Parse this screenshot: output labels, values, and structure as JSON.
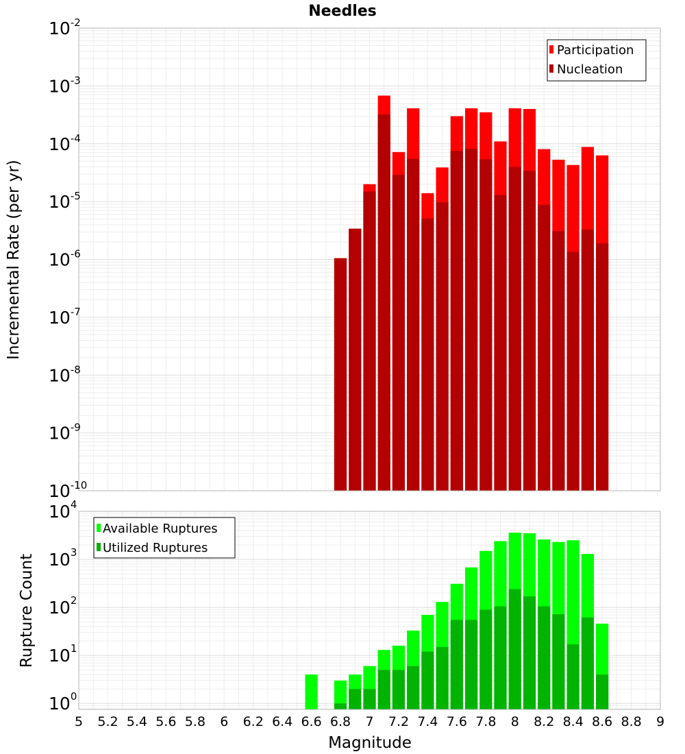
{
  "chart_data": [
    {
      "type": "bar",
      "title": "Needles",
      "xlabel": "",
      "ylabel": "Incremental Rate (per yr)",
      "yscale": "log",
      "ylim": [
        1e-10,
        0.01
      ],
      "xlim": [
        5,
        9
      ],
      "ytick_base": "10",
      "ytick_exponents": [
        "-10",
        "-9",
        "-8",
        "-7",
        "-6",
        "-5",
        "-4",
        "-3",
        "-2"
      ],
      "legend_position": "top-right",
      "bin_width": 0.1,
      "x": [
        6.8,
        6.9,
        7.0,
        7.1,
        7.2,
        7.3,
        7.4,
        7.5,
        7.6,
        7.7,
        7.8,
        7.9,
        8.0,
        8.1,
        8.2,
        8.3,
        8.4,
        8.5,
        8.6
      ],
      "series": [
        {
          "name": "Participation",
          "color": "#ff0000",
          "values": [
            1.05e-06,
            3.4e-06,
            2e-05,
            0.00068,
            7.2e-05,
            0.00041,
            1.4e-05,
            3.9e-05,
            0.0003,
            0.00041,
            0.00035,
            0.00011,
            0.00041,
            0.0004,
            8.1e-05,
            5.3e-05,
            4.3e-05,
            8.8e-05,
            6.3e-05
          ]
        },
        {
          "name": "Nucleation",
          "color": "#b30000",
          "values": [
            1.05e-06,
            3.4e-06,
            1.5e-05,
            0.00032,
            2.9e-05,
            5.5e-05,
            5.1e-06,
            9.7e-06,
            7.5e-05,
            8.2e-05,
            5.4e-05,
            1.3e-05,
            4e-05,
            3.4e-05,
            8.8e-06,
            3.1e-06,
            1.35e-06,
            3.3e-06,
            1.9e-06
          ]
        }
      ]
    },
    {
      "type": "bar",
      "title": "",
      "xlabel": "Magnitude",
      "ylabel": "Rupture Count",
      "yscale": "log",
      "ylim": [
        0.75,
        10000
      ],
      "xlim": [
        5,
        9
      ],
      "ytick_base": "10",
      "ytick_exponents": [
        "0",
        "1",
        "2",
        "3",
        "4"
      ],
      "xticks": [
        "5",
        "5.2",
        "5.4",
        "5.6",
        "5.8",
        "6",
        "6.2",
        "6.4",
        "6.6",
        "6.8",
        "7",
        "7.2",
        "7.4",
        "7.6",
        "7.8",
        "8",
        "8.2",
        "8.4",
        "8.6",
        "8.8",
        "9"
      ],
      "legend_position": "top-left",
      "bin_width": 0.1,
      "x": [
        6.6,
        6.8,
        6.9,
        7.0,
        7.1,
        7.2,
        7.3,
        7.4,
        7.5,
        7.6,
        7.7,
        7.8,
        7.9,
        8.0,
        8.1,
        8.2,
        8.3,
        8.4,
        8.5,
        8.6
      ],
      "series": [
        {
          "name": "Available Ruptures",
          "color": "#00ff00",
          "values": [
            4,
            3,
            4,
            6,
            13,
            16,
            33,
            70,
            130,
            310,
            680,
            1500,
            2400,
            3600,
            3500,
            2600,
            2300,
            2500,
            1300,
            46
          ]
        },
        {
          "name": "Utilized Ruptures",
          "color": "#00b300",
          "values": [
            0,
            1,
            2,
            2,
            5,
            5,
            6,
            12,
            15,
            55,
            55,
            90,
            105,
            240,
            170,
            105,
            72,
            17,
            62,
            4
          ]
        }
      ]
    }
  ]
}
